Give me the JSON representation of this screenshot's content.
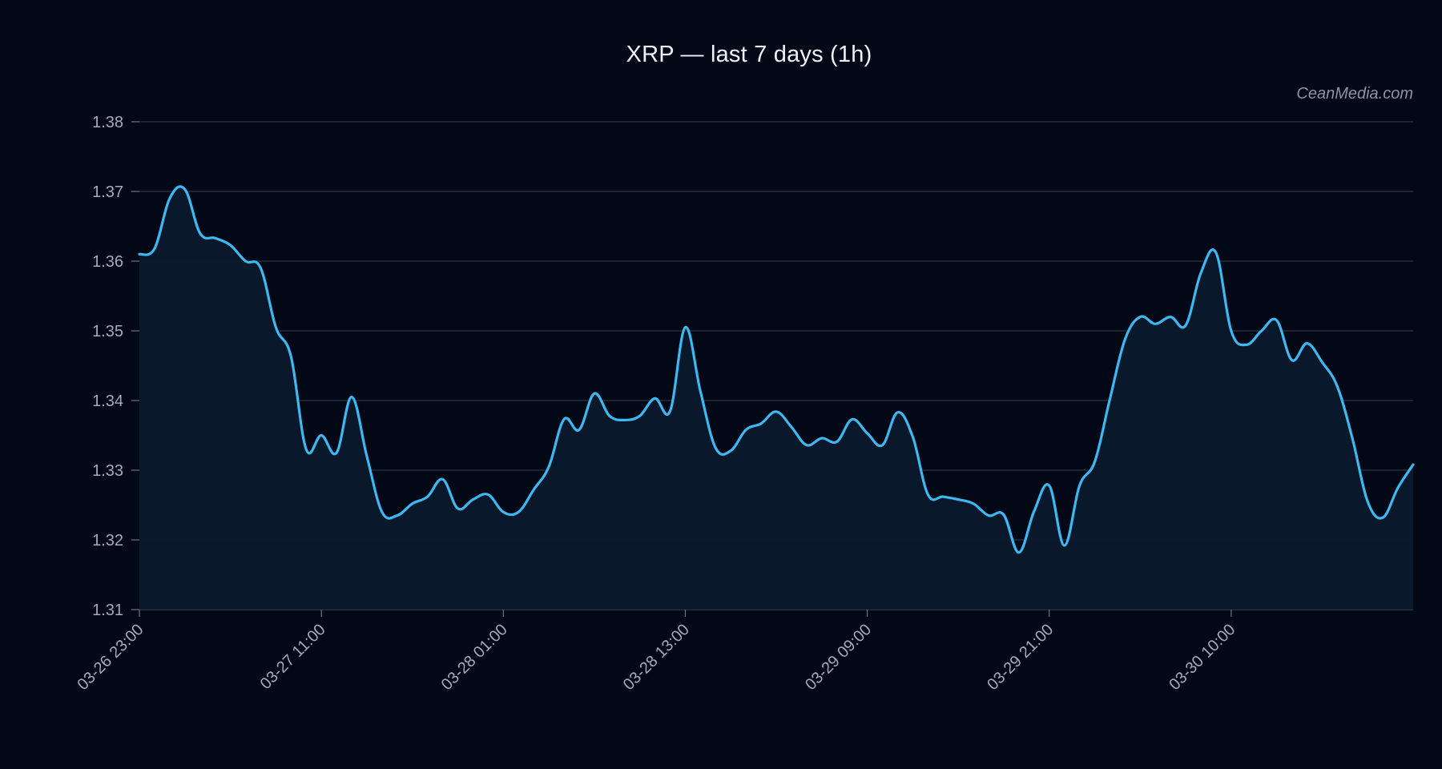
{
  "watermark": "CeanMedia.com",
  "chart_data": {
    "type": "area",
    "title": "XRP — last 7 days (1h)",
    "xlabel": "",
    "ylabel": "",
    "ylim": [
      1.31,
      1.38
    ],
    "yticks": [
      1.31,
      1.32,
      1.33,
      1.34,
      1.35,
      1.36,
      1.37,
      1.38
    ],
    "ytick_labels": [
      "1.31",
      "1.32",
      "1.33",
      "1.34",
      "1.35",
      "1.36",
      "1.37",
      "1.38"
    ],
    "xtick_labels": [
      "03-26 23:00",
      "03-27 11:00",
      "03-28 01:00",
      "03-28 13:00",
      "03-29 09:00",
      "03-29 21:00",
      "03-30 10:00"
    ],
    "xtick_index": [
      0,
      12,
      24,
      36,
      48,
      60,
      72
    ],
    "grid": true,
    "legend": "none",
    "colors": {
      "background": "#030817",
      "line": "#3db8f0",
      "fill": "#0a1a2c",
      "grid": "#2c3544"
    },
    "series": [
      {
        "values": [
          1.361,
          1.3618,
          1.369,
          1.3703,
          1.364,
          1.3633,
          1.3623,
          1.36,
          1.359,
          1.3505,
          1.3463,
          1.333,
          1.335,
          1.3325,
          1.3405,
          1.332,
          1.324,
          1.3235,
          1.3252,
          1.3262,
          1.3287,
          1.3245,
          1.3258,
          1.3265,
          1.324,
          1.324,
          1.3272,
          1.3305,
          1.3373,
          1.3358,
          1.341,
          1.3378,
          1.3372,
          1.3378,
          1.3403,
          1.3385,
          1.3505,
          1.3413,
          1.3332,
          1.3328,
          1.3358,
          1.3367,
          1.3384,
          1.3362,
          1.3336,
          1.3346,
          1.3341,
          1.3373,
          1.3353,
          1.3336,
          1.3383,
          1.3348,
          1.3265,
          1.3262,
          1.3258,
          1.3252,
          1.3235,
          1.3236,
          1.3182,
          1.3241,
          1.3278,
          1.3192,
          1.3278,
          1.3312,
          1.3402,
          1.3488,
          1.352,
          1.351,
          1.352,
          1.3508,
          1.3583,
          1.3612,
          1.35,
          1.348,
          1.35,
          1.3515,
          1.3458,
          1.3482,
          1.3455,
          1.342,
          1.3345,
          1.3255,
          1.3232,
          1.3275,
          1.3308
        ]
      }
    ]
  }
}
